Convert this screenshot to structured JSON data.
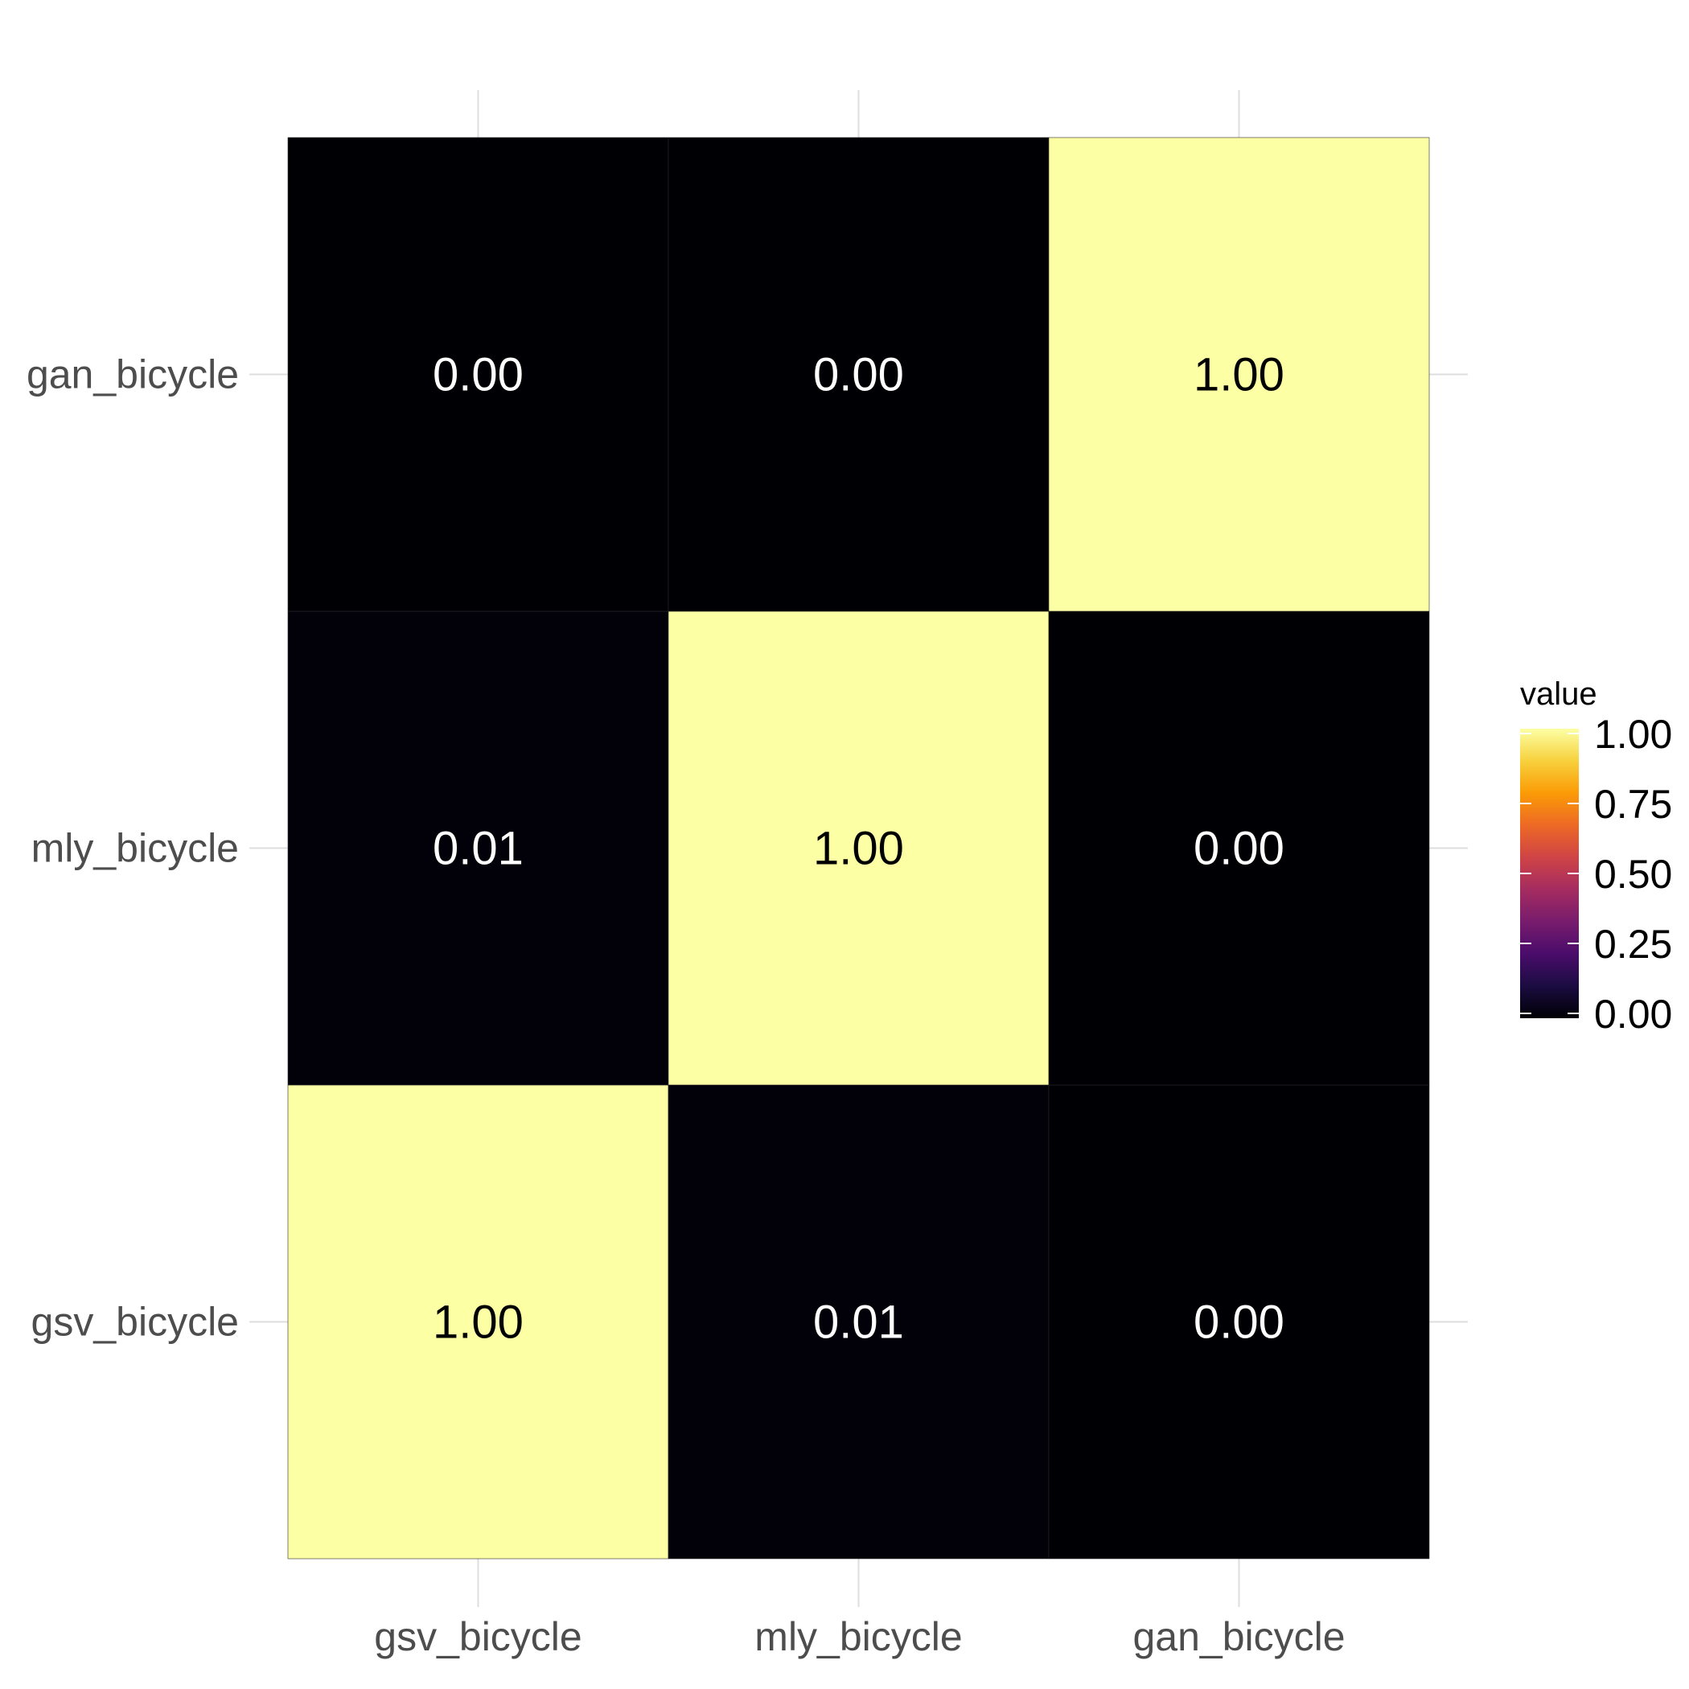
{
  "chart_data": {
    "type": "heatmap",
    "x_categories": [
      "gsv_bicycle",
      "mly_bicycle",
      "gan_bicycle"
    ],
    "y_categories": [
      "gsv_bicycle",
      "mly_bicycle",
      "gan_bicycle"
    ],
    "values": [
      [
        1.0,
        0.01,
        0.0
      ],
      [
        0.01,
        1.0,
        0.0
      ],
      [
        0.0,
        0.0,
        1.0
      ]
    ],
    "cell_labels": [
      [
        "1.00",
        "0.01",
        "0.00"
      ],
      [
        "0.01",
        "1.00",
        "0.00"
      ],
      [
        "0.00",
        "0.00",
        "1.00"
      ]
    ],
    "legend": {
      "title": "value",
      "placement": "right",
      "range": [
        0,
        1
      ],
      "ticks": [
        0.0,
        0.25,
        0.5,
        0.75,
        1.0
      ],
      "tick_labels": [
        "0.00",
        "0.25",
        "0.50",
        "0.75",
        "1.00"
      ]
    },
    "colormap": "inferno",
    "colormap_stops": [
      "#000004",
      "#1b0c41",
      "#4a0c6b",
      "#781c6d",
      "#a52c60",
      "#cf4446",
      "#ed6925",
      "#fb9b06",
      "#f7d13d",
      "#fcffa4"
    ],
    "grid": true,
    "title": "",
    "xlabel": "",
    "ylabel": ""
  }
}
